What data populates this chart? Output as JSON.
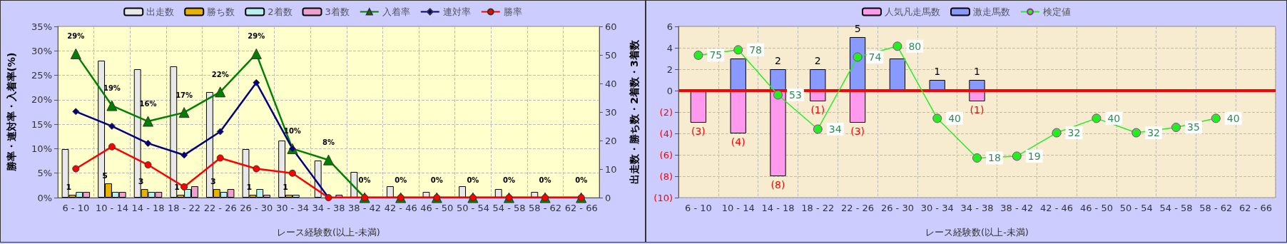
{
  "chart_data": [
    {
      "type": "bar",
      "xlabel": "レース経験数(以上-未満)",
      "ylabel": "勝率・連対率・入着率(%)",
      "y2label": "出走数・勝ち数・2着数・3着数",
      "legend": "top",
      "grid": true,
      "categories": [
        "6 - 10",
        "10 - 14",
        "14 - 18",
        "18 - 22",
        "22 - 26",
        "26 - 30",
        "30 - 34",
        "34 - 38",
        "38 - 42",
        "42 - 46",
        "46 - 50",
        "50 - 54",
        "54 - 58",
        "58 - 62",
        "62 - 66"
      ],
      "ylim": [
        0,
        35
      ],
      "yticks": [
        {
          "value": 0,
          "label": "0%"
        },
        {
          "value": 5,
          "label": "5%"
        },
        {
          "value": 10,
          "label": "10%"
        },
        {
          "value": 15,
          "label": "15%"
        },
        {
          "value": 20,
          "label": "20%"
        },
        {
          "value": 25,
          "label": "25%"
        },
        {
          "value": 30,
          "label": "30%"
        },
        {
          "value": 35,
          "label": "35%"
        }
      ],
      "y2lim": [
        0,
        60
      ],
      "y2ticks": [
        0,
        10,
        20,
        30,
        40,
        50,
        60
      ],
      "series": [
        {
          "name": "出走数",
          "axis": "y2",
          "color": "#e8e8e8",
          "values": [
            17,
            48,
            45,
            46,
            37,
            17,
            20,
            13,
            9,
            4,
            2,
            4,
            3,
            2,
            0
          ]
        },
        {
          "name": "勝ち数",
          "axis": "y2",
          "color": "#e6b400",
          "values": [
            1,
            5,
            3,
            1,
            3,
            1,
            1,
            0,
            0,
            0,
            0,
            0,
            0,
            0,
            0
          ],
          "value_labels": [
            "1",
            "5",
            "3",
            "1",
            "3",
            "1",
            "1",
            null,
            null,
            null,
            null,
            null,
            null,
            null,
            null
          ]
        },
        {
          "name": "2着数",
          "axis": "y2",
          "color": "#b8f0f0",
          "values": [
            2,
            2,
            2,
            3,
            2,
            3,
            1,
            0,
            0,
            0,
            0,
            0,
            0,
            0,
            0
          ]
        },
        {
          "name": "3着数",
          "axis": "y2",
          "color": "#f0a0d0",
          "values": [
            2,
            2,
            2,
            4,
            3,
            1,
            0,
            1,
            0,
            0,
            0,
            0,
            0,
            0,
            0
          ]
        },
        {
          "name": "入着率",
          "type": "line",
          "marker": "triangle",
          "color": "#008000",
          "values": [
            29.4,
            18.8,
            15.6,
            17.4,
            21.6,
            29.4,
            10,
            7.7,
            0,
            0,
            0,
            0,
            0,
            0,
            0
          ],
          "value_labels": [
            "29%",
            "19%",
            "16%",
            "17%",
            "22%",
            "29%",
            "10%",
            "8%",
            "0%",
            "0%",
            "0%",
            "0%",
            "0%",
            "0%",
            "0%"
          ]
        },
        {
          "name": "連対率",
          "type": "line",
          "marker": "diamond",
          "color": "#000080",
          "values": [
            17.6,
            14.6,
            11.1,
            8.7,
            13.5,
            23.5,
            10,
            0,
            0,
            0,
            0,
            0,
            0,
            0,
            0
          ]
        },
        {
          "name": "勝率",
          "type": "line",
          "marker": "circle",
          "color": "#ff0000",
          "values": [
            5.9,
            10.4,
            6.7,
            2.2,
            8.1,
            5.9,
            5,
            0,
            0,
            0,
            0,
            0,
            0,
            0,
            0
          ]
        }
      ]
    },
    {
      "type": "bar",
      "xlabel": "レース経験数(以上-未満)",
      "legend": "top",
      "grid": true,
      "stacked": true,
      "categories": [
        "6 - 10",
        "10 - 14",
        "14 - 18",
        "18 - 22",
        "22 - 26",
        "26 - 30",
        "30 - 34",
        "34 - 38",
        "38 - 42",
        "42 - 46",
        "46 - 50",
        "50 - 54",
        "54 - 58",
        "58 - 62",
        "62 - 66"
      ],
      "ylim": [
        -10,
        6
      ],
      "yticks": [
        {
          "value": -10,
          "label": "(10)"
        },
        {
          "value": -8,
          "label": "(8)"
        },
        {
          "value": -6,
          "label": "(6)"
        },
        {
          "value": -4,
          "label": "(4)"
        },
        {
          "value": -2,
          "label": "(2)"
        },
        0,
        2,
        4,
        6
      ],
      "y2lim": [
        -4,
        91
      ],
      "ref_lines": [
        {
          "axis": "y",
          "value": 0,
          "color": "#ff0000"
        }
      ],
      "series": [
        {
          "name": "人気凡走馬数",
          "color": "#ff99ee",
          "values": [
            -3,
            -4,
            -8,
            -1,
            -3,
            0,
            0,
            -1,
            0,
            0,
            0,
            0,
            0,
            0,
            0
          ],
          "value_labels": [
            "(3)",
            "(4)",
            "(8)",
            "(1)",
            "(3)",
            null,
            null,
            "(1)",
            null,
            null,
            null,
            null,
            null,
            null,
            null
          ]
        },
        {
          "name": "激走馬数",
          "color": "#8899ff",
          "values": [
            0,
            3,
            2,
            2,
            5,
            3,
            1,
            1,
            0,
            0,
            0,
            0,
            0,
            0,
            0
          ],
          "value_labels": [
            null,
            null,
            "2",
            "2",
            "5",
            null,
            "1",
            "1",
            null,
            null,
            null,
            null,
            null,
            null,
            null
          ]
        },
        {
          "name": "検定値",
          "type": "line",
          "axis": "y2",
          "marker": "circle",
          "color": "#22ee22",
          "values": [
            75,
            78,
            53,
            34,
            74,
            80,
            40,
            18,
            19,
            32,
            40,
            32,
            35,
            40,
            null
          ],
          "value_labels": [
            "75",
            "78",
            "53",
            "34",
            "74",
            "80",
            "40",
            "18",
            "19",
            "32",
            "40",
            "32",
            "35",
            "40",
            null
          ]
        }
      ]
    }
  ]
}
